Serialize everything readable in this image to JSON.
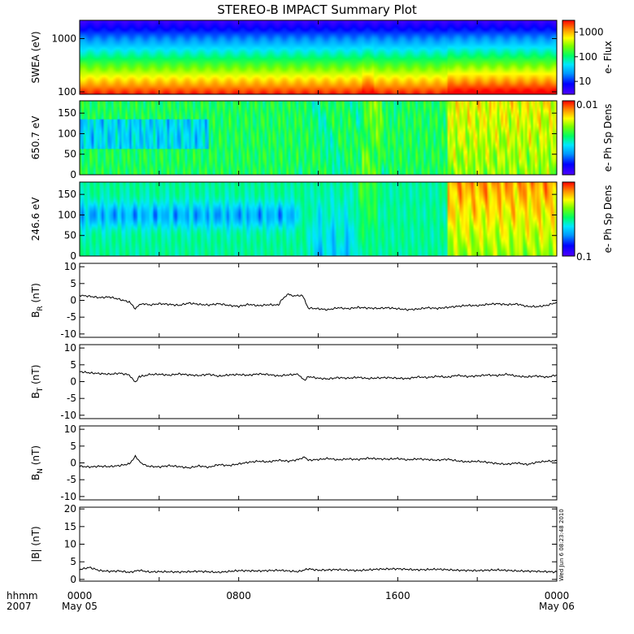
{
  "title": "STEREO-B IMPACT Summary Plot",
  "stamp": "Wed Jun  6 08:23:48 2010",
  "time_axis": {
    "row_label_1": "hhmm",
    "row_label_2": "2007",
    "ticks": [
      {
        "t": 0,
        "time": "0000",
        "date": "May 05"
      },
      {
        "t": 8,
        "time": "0800",
        "date": ""
      },
      {
        "t": 16,
        "time": "1600",
        "date": ""
      },
      {
        "t": 24,
        "time": "0000",
        "date": "May 06"
      }
    ]
  },
  "chart_data": [
    {
      "type": "heatmap",
      "id": "swea",
      "ylabel": "SWEA (eV)",
      "yscale": "log",
      "ylim": [
        90,
        2200
      ],
      "yticks": [
        {
          "v": 100,
          "label": "100"
        },
        {
          "v": 1000,
          "label": "1000"
        }
      ],
      "colorbar": {
        "label": "e- Flux",
        "scale": "log",
        "range": [
          3,
          3000
        ],
        "ticks": [
          {
            "v": 10,
            "label": "10"
          },
          {
            "v": 100,
            "label": "100"
          },
          {
            "v": 1000,
            "label": "1000"
          }
        ]
      }
    },
    {
      "type": "heatmap",
      "id": "pad650",
      "ylabel": "650.7 eV",
      "ylim": [
        0,
        180
      ],
      "yticks": [
        {
          "v": 0,
          "label": "0"
        },
        {
          "v": 50,
          "label": "50"
        },
        {
          "v": 100,
          "label": "100"
        },
        {
          "v": 150,
          "label": "150"
        }
      ],
      "colorbar": {
        "label": "e- Ph Sp Dens",
        "scale": "log",
        "ticks": [
          {
            "v": 0.01,
            "label": "0.01",
            "pos": "top"
          }
        ]
      }
    },
    {
      "type": "heatmap",
      "id": "pad246",
      "ylabel": "246.6 eV",
      "ylim": [
        0,
        180
      ],
      "yticks": [
        {
          "v": 0,
          "label": "0"
        },
        {
          "v": 50,
          "label": "50"
        },
        {
          "v": 100,
          "label": "100"
        },
        {
          "v": 150,
          "label": "150"
        }
      ],
      "colorbar": {
        "label": "e- Ph Sp Dens",
        "scale": "log",
        "ticks": [
          {
            "v": 0.1,
            "label": "0.1",
            "pos": "bottom"
          }
        ]
      }
    },
    {
      "type": "line",
      "id": "br",
      "ylabel_main": "B",
      "ylabel_sub": "R",
      "ylabel_unit": " (nT)",
      "ylim": [
        -11,
        11
      ],
      "yticks": [
        10,
        5,
        0,
        -5,
        -10
      ],
      "x": [
        0,
        0.5,
        1,
        1.5,
        2,
        2.5,
        2.8,
        3,
        3.2,
        3.5,
        4,
        4.5,
        5,
        5.5,
        6,
        6.5,
        7,
        7.5,
        8,
        8.5,
        9,
        9.5,
        10,
        10.2,
        10.5,
        10.8,
        11.2,
        11.5,
        12,
        12.5,
        13,
        13.5,
        14,
        14.5,
        15,
        15.5,
        16,
        16.5,
        17,
        17.5,
        18,
        18.5,
        19,
        19.5,
        20,
        20.5,
        21,
        21.5,
        22,
        22.5,
        23,
        23.5,
        24
      ],
      "y": [
        1.5,
        1.2,
        0.8,
        1.0,
        0.3,
        -0.5,
        -2.5,
        -1.3,
        -1.0,
        -1.4,
        -1.0,
        -1.2,
        -1.5,
        -0.8,
        -1.2,
        -1.4,
        -1.0,
        -1.5,
        -1.8,
        -1.2,
        -1.6,
        -1.3,
        -1.4,
        0.5,
        1.8,
        1.3,
        1.5,
        -2.3,
        -2.5,
        -2.8,
        -2.2,
        -2.5,
        -2.1,
        -2.3,
        -2.4,
        -2.2,
        -2.5,
        -2.8,
        -2.6,
        -2.2,
        -2.4,
        -2.1,
        -1.8,
        -1.5,
        -1.6,
        -1.2,
        -1.0,
        -1.3,
        -1.1,
        -1.8,
        -1.9,
        -1.5,
        -0.6
      ]
    },
    {
      "type": "line",
      "id": "bt",
      "ylabel_main": "B",
      "ylabel_sub": "T",
      "ylabel_unit": " (nT)",
      "ylim": [
        -11,
        11
      ],
      "yticks": [
        10,
        5,
        0,
        -5,
        -10
      ],
      "x": [
        0,
        0.5,
        1,
        1.5,
        2,
        2.5,
        2.8,
        3,
        3.2,
        3.5,
        4,
        4.5,
        5,
        5.5,
        6,
        6.5,
        7,
        7.5,
        8,
        8.5,
        9,
        9.5,
        10,
        10.5,
        11,
        11.3,
        11.5,
        12,
        12.5,
        13,
        13.5,
        14,
        14.5,
        15,
        15.5,
        16,
        16.5,
        17,
        17.5,
        18,
        18.5,
        19,
        19.5,
        20,
        20.5,
        21,
        21.5,
        22,
        22.5,
        23,
        23.5,
        24
      ],
      "y": [
        3.0,
        2.6,
        2.4,
        2.2,
        2.5,
        2.0,
        -0.3,
        1.5,
        1.7,
        2.1,
        2.2,
        1.9,
        2.3,
        2.0,
        1.8,
        2.2,
        1.6,
        2.0,
        2.1,
        1.9,
        2.3,
        2.1,
        1.7,
        2.0,
        2.2,
        0.3,
        1.5,
        1.0,
        0.8,
        1.2,
        1.0,
        1.3,
        0.9,
        1.1,
        1.2,
        1.0,
        0.9,
        1.4,
        1.2,
        1.6,
        1.3,
        1.9,
        1.5,
        1.7,
        2.0,
        1.8,
        2.2,
        1.6,
        1.4,
        1.7,
        1.3,
        2.0
      ]
    },
    {
      "type": "line",
      "id": "bn",
      "ylabel_main": "B",
      "ylabel_sub": "N",
      "ylabel_unit": " (nT)",
      "ylim": [
        -11,
        11
      ],
      "yticks": [
        10,
        5,
        0,
        -5,
        -10
      ],
      "x": [
        0,
        0.5,
        1,
        1.5,
        2,
        2.5,
        2.8,
        3,
        3.2,
        3.5,
        4,
        4.5,
        5,
        5.5,
        6,
        6.5,
        7,
        7.5,
        8,
        8.5,
        9,
        9.5,
        10,
        10.5,
        11,
        11.3,
        11.5,
        12,
        12.5,
        13,
        13.5,
        14,
        14.5,
        15,
        15.5,
        16,
        16.5,
        17,
        17.5,
        18,
        18.5,
        19,
        19.5,
        20,
        20.5,
        21,
        21.5,
        22,
        22.5,
        23,
        23.5,
        24
      ],
      "y": [
        -1.0,
        -1.2,
        -1.0,
        -1.1,
        -0.8,
        -0.3,
        2.0,
        0.5,
        -0.5,
        -1.0,
        -1.2,
        -0.8,
        -1.1,
        -1.5,
        -0.9,
        -1.3,
        -0.5,
        -0.8,
        -0.3,
        0.2,
        0.5,
        0.3,
        0.8,
        0.5,
        1.0,
        1.8,
        0.8,
        1.0,
        1.3,
        0.9,
        1.2,
        1.0,
        1.4,
        1.2,
        1.1,
        1.3,
        0.9,
        1.2,
        1.0,
        0.8,
        1.1,
        0.6,
        0.3,
        0.5,
        0.2,
        -0.2,
        -0.4,
        0.0,
        -0.5,
        0.2,
        0.5,
        0.6
      ]
    },
    {
      "type": "line",
      "id": "bmag",
      "ylabel_main": "|B| (nT)",
      "ylim": [
        -0.5,
        20.5
      ],
      "yticks": [
        0,
        5,
        10,
        15,
        20
      ],
      "x": [
        0,
        0.5,
        1,
        1.5,
        2,
        2.5,
        3,
        3.5,
        4,
        5,
        6,
        7,
        8,
        9,
        10,
        11,
        11.5,
        12,
        13,
        14,
        15,
        16,
        17,
        18,
        19,
        20,
        21,
        22,
        23,
        24
      ],
      "y": [
        2.8,
        3.4,
        2.5,
        2.3,
        2.4,
        2.0,
        2.6,
        2.1,
        2.2,
        2.1,
        2.3,
        2.0,
        2.5,
        2.4,
        2.6,
        2.2,
        3.0,
        2.6,
        2.8,
        2.5,
        2.9,
        3.0,
        2.7,
        2.9,
        2.6,
        2.5,
        2.7,
        2.4,
        2.3,
        2.1
      ]
    }
  ]
}
